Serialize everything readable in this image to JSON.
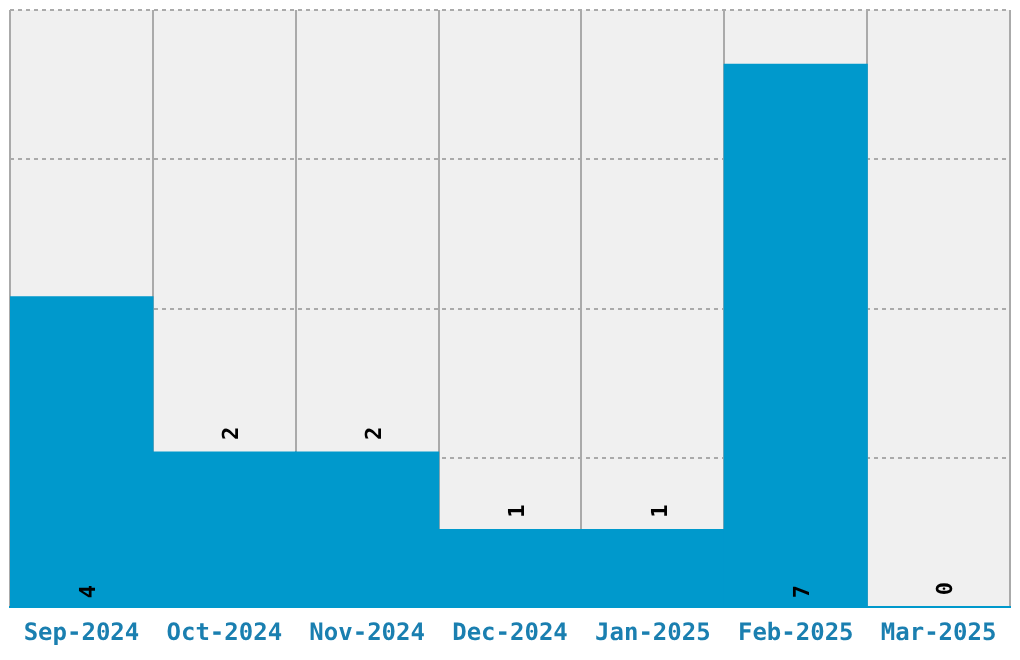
{
  "chart_data": {
    "type": "bar",
    "categories": [
      "Sep-2024",
      "Oct-2024",
      "Nov-2024",
      "Dec-2024",
      "Jan-2025",
      "Feb-2025",
      "Mar-2025"
    ],
    "values": [
      4,
      2,
      2,
      1,
      1,
      7,
      0
    ],
    "color": "#0099cc",
    "ylim": [
      0,
      7.7
    ],
    "yticks": [
      {
        "value": 0,
        "label": null
      },
      {
        "value": 1.925,
        "label": null
      },
      {
        "value": 3.85,
        "label": null
      },
      {
        "value": 5.775,
        "label": null
      },
      {
        "value": 7.7,
        "label": null
      }
    ],
    "grid": true,
    "tick_labels": "x",
    "data_labels": true
  }
}
